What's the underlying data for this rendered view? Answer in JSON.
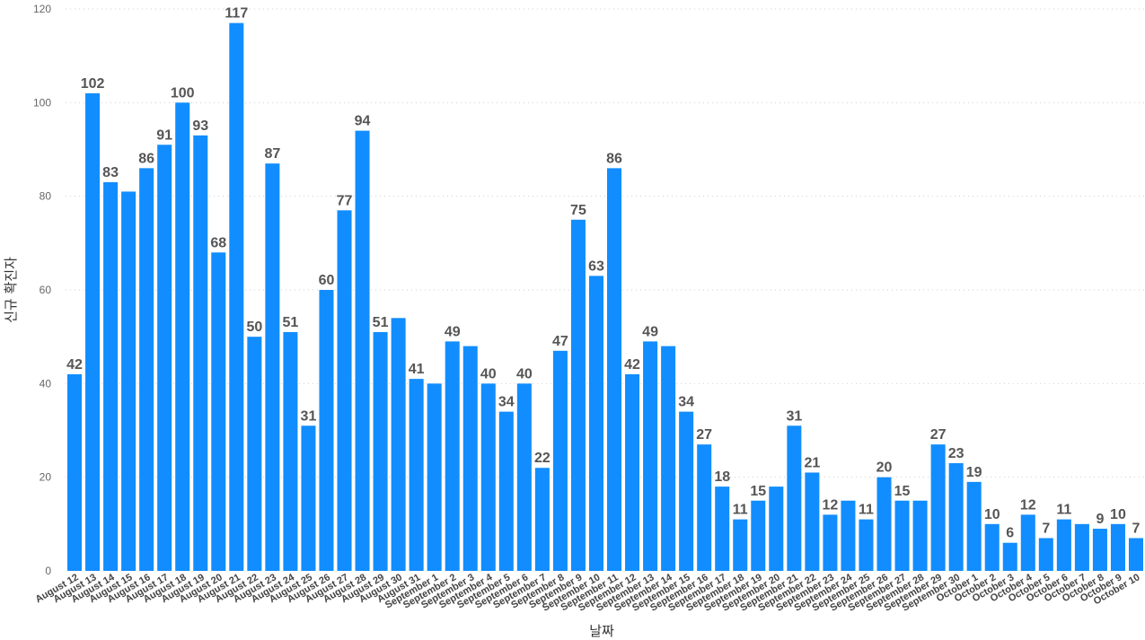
{
  "chart_data": {
    "type": "bar",
    "xlabel": "날짜",
    "ylabel": "신규 확진자",
    "ylim": [
      0,
      120
    ],
    "yticks": [
      0,
      20,
      40,
      60,
      80,
      100,
      120
    ],
    "grid": true,
    "bar_color": "#118DFF",
    "categories": [
      "August 12",
      "August 13",
      "August 14",
      "August 15",
      "August 16",
      "August 17",
      "August 18",
      "August 19",
      "August 20",
      "August 21",
      "August 22",
      "August 23",
      "August 24",
      "August 25",
      "August 26",
      "August 27",
      "August 28",
      "August 29",
      "August 30",
      "August 31",
      "September 1",
      "September 2",
      "September 3",
      "September 4",
      "September 5",
      "September 6",
      "September 7",
      "September 8",
      "September 9",
      "September 10",
      "September 11",
      "September 12",
      "September 13",
      "September 14",
      "September 15",
      "September 16",
      "September 17",
      "September 18",
      "September 19",
      "September 20",
      "September 21",
      "September 22",
      "September 23",
      "September 24",
      "September 25",
      "September 26",
      "September 27",
      "September 28",
      "September 29",
      "September 30",
      "October 1",
      "October 2",
      "October 3",
      "October 4",
      "October 5",
      "October 6",
      "October 7",
      "October 8",
      "October 9",
      "October 10"
    ],
    "values": [
      42,
      102,
      83,
      81,
      86,
      91,
      100,
      93,
      68,
      117,
      50,
      87,
      51,
      31,
      60,
      77,
      94,
      51,
      54,
      41,
      40,
      49,
      48,
      40,
      34,
      40,
      22,
      47,
      75,
      63,
      86,
      42,
      49,
      48,
      34,
      27,
      18,
      11,
      15,
      18,
      31,
      21,
      12,
      15,
      11,
      20,
      15,
      15,
      27,
      23,
      19,
      10,
      6,
      12,
      7,
      11,
      10,
      9,
      10,
      7
    ],
    "data_labels": [
      "42",
      "102",
      "83",
      "",
      "86",
      "91",
      "100",
      "93",
      "68",
      "117",
      "50",
      "87",
      "51",
      "31",
      "60",
      "77",
      "94",
      "51",
      "",
      "41",
      "",
      "49",
      "",
      "40",
      "34",
      "40",
      "22",
      "47",
      "75",
      "63",
      "86",
      "42",
      "49",
      "",
      "34",
      "27",
      "18",
      "11",
      "15",
      "",
      "31",
      "21",
      "12",
      "",
      "11",
      "20",
      "15",
      "",
      "27",
      "23",
      "19",
      "10",
      "6",
      "12",
      "7",
      "11",
      "",
      "9",
      "10",
      "7"
    ]
  }
}
